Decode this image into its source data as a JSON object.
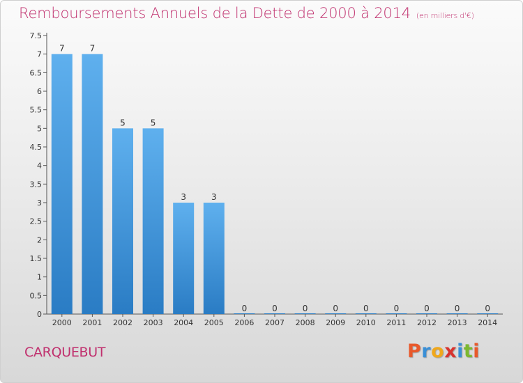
{
  "header": {
    "title": "Remboursements Annuels de la Dette de 2000 à 2014",
    "unit": "(en milliers d'€)"
  },
  "footer": {
    "commune": "CARQUEBUT",
    "logo": "Proxiti"
  },
  "colors": {
    "title": "#c0306e",
    "bar_top": "#5fb0ee",
    "bar_bottom": "#2a7cc4",
    "logo_letters": [
      "#e8592b",
      "#3a8fd6",
      "#f0a81c",
      "#d8342f",
      "#3a8fd6",
      "#7cb82f",
      "#e8592b"
    ]
  },
  "chart_data": {
    "type": "bar",
    "categories": [
      "2000",
      "2001",
      "2002",
      "2003",
      "2004",
      "2005",
      "2006",
      "2007",
      "2008",
      "2009",
      "2010",
      "2011",
      "2012",
      "2013",
      "2014"
    ],
    "values": [
      7,
      7,
      5,
      5,
      3,
      3,
      0,
      0,
      0,
      0,
      0,
      0,
      0,
      0,
      0
    ],
    "data_labels": [
      "7",
      "7",
      "5",
      "5",
      "3",
      "3",
      "0",
      "0",
      "0",
      "0",
      "0",
      "0",
      "0",
      "0",
      "0"
    ],
    "yticks": [
      "0",
      "0.5",
      "1",
      "1.5",
      "2",
      "2.5",
      "3",
      "3.5",
      "4",
      "4.5",
      "5",
      "5.5",
      "6",
      "6.5",
      "7",
      "7.5"
    ],
    "ylim": [
      0,
      7.5
    ],
    "title": "Remboursements Annuels de la Dette de 2000 à 2014",
    "xlabel": "",
    "ylabel": "",
    "grid": false,
    "legend": "none"
  }
}
